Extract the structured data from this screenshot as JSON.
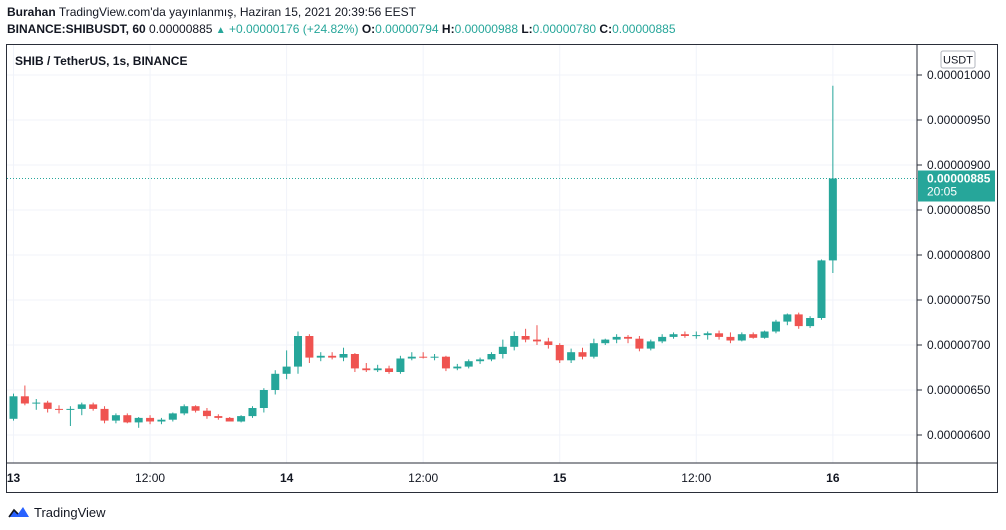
{
  "header": {
    "author": "Burahan",
    "published": "TradingView.com'da yayınlanmış, Haziran 15, 2021 20:39:56 EEST",
    "symbol": "BINANCE:SHIBUSDT, 60",
    "last": "0.00000885",
    "change": "+0.00000176 (+24.82%)",
    "o_label": "O:",
    "o": "0.00000794",
    "h_label": "H:",
    "h": "0.00000988",
    "l_label": "L:",
    "l": "0.00000780",
    "c_label": "C:",
    "c": "0.00000885"
  },
  "footer": {
    "brand": "TradingView"
  },
  "colors": {
    "up": "#26a69a",
    "down": "#ef5350",
    "grid": "#f0f3fa",
    "axis": "#2a2e39",
    "text": "#131722"
  },
  "chart_data": {
    "type": "candlestick",
    "title": "SHIB / TetherUS, 1s, BINANCE",
    "currency": "USDT",
    "ylim": [
      5.5e-06,
      1.04e-05
    ],
    "y_ticks": [
      "0.00001000",
      "0.00000950",
      "0.00000900",
      "0.00000850",
      "0.00000800",
      "0.00000750",
      "0.00000700",
      "0.00000650",
      "0.00000600"
    ],
    "x_ticks": [
      {
        "label": "13",
        "i": 0
      },
      {
        "label": "12:00",
        "i": 12
      },
      {
        "label": "14",
        "i": 24
      },
      {
        "label": "12:00",
        "i": 36
      },
      {
        "label": "15",
        "i": 48
      },
      {
        "label": "12:00",
        "i": 60
      },
      {
        "label": "16",
        "i": 72
      }
    ],
    "last_price": "0.00000885",
    "countdown": "20:05",
    "candles": [
      [
        6.18,
        6.46,
        6.16,
        6.43
      ],
      [
        6.43,
        6.55,
        6.33,
        6.35
      ],
      [
        6.35,
        6.4,
        6.28,
        6.36
      ],
      [
        6.36,
        6.38,
        6.25,
        6.29
      ],
      [
        6.29,
        6.33,
        6.24,
        6.28
      ],
      [
        6.28,
        6.32,
        6.1,
        6.29
      ],
      [
        6.29,
        6.36,
        6.22,
        6.34
      ],
      [
        6.34,
        6.36,
        6.27,
        6.29
      ],
      [
        6.29,
        6.32,
        6.13,
        6.16
      ],
      [
        6.16,
        6.24,
        6.13,
        6.22
      ],
      [
        6.22,
        6.24,
        6.13,
        6.14
      ],
      [
        6.14,
        6.2,
        6.08,
        6.19
      ],
      [
        6.19,
        6.22,
        6.12,
        6.15
      ],
      [
        6.15,
        6.19,
        6.12,
        6.17
      ],
      [
        6.17,
        6.25,
        6.15,
        6.24
      ],
      [
        6.24,
        6.34,
        6.22,
        6.32
      ],
      [
        6.32,
        6.33,
        6.25,
        6.27
      ],
      [
        6.27,
        6.3,
        6.18,
        6.21
      ],
      [
        6.21,
        6.23,
        6.17,
        6.19
      ],
      [
        6.19,
        6.2,
        6.15,
        6.15
      ],
      [
        6.15,
        6.22,
        6.14,
        6.21
      ],
      [
        6.21,
        6.32,
        6.19,
        6.3
      ],
      [
        6.3,
        6.52,
        6.25,
        6.5
      ],
      [
        6.5,
        6.72,
        6.45,
        6.68
      ],
      [
        6.68,
        6.94,
        6.62,
        6.76
      ],
      [
        6.76,
        7.15,
        6.68,
        7.1
      ],
      [
        7.1,
        7.12,
        6.8,
        6.86
      ],
      [
        6.86,
        6.92,
        6.82,
        6.88
      ],
      [
        6.88,
        6.92,
        6.84,
        6.86
      ],
      [
        6.86,
        6.97,
        6.82,
        6.9
      ],
      [
        6.9,
        6.91,
        6.7,
        6.74
      ],
      [
        6.74,
        6.8,
        6.7,
        6.72
      ],
      [
        6.72,
        6.78,
        6.7,
        6.74
      ],
      [
        6.74,
        6.77,
        6.68,
        6.7
      ],
      [
        6.7,
        6.88,
        6.68,
        6.85
      ],
      [
        6.85,
        6.92,
        6.83,
        6.87
      ],
      [
        6.87,
        6.92,
        6.85,
        6.86
      ],
      [
        6.86,
        6.9,
        6.83,
        6.87
      ],
      [
        6.87,
        6.88,
        6.71,
        6.74
      ],
      [
        6.74,
        6.79,
        6.72,
        6.76
      ],
      [
        6.76,
        6.84,
        6.74,
        6.82
      ],
      [
        6.82,
        6.86,
        6.79,
        6.84
      ],
      [
        6.84,
        6.92,
        6.82,
        6.9
      ],
      [
        6.9,
        7.06,
        6.85,
        6.98
      ],
      [
        6.98,
        7.15,
        6.94,
        7.1
      ],
      [
        7.1,
        7.18,
        7.03,
        7.06
      ],
      [
        7.06,
        7.22,
        7.0,
        7.04
      ],
      [
        7.04,
        7.08,
        6.96,
        7.0
      ],
      [
        7.0,
        7.02,
        6.8,
        6.83
      ],
      [
        6.83,
        6.96,
        6.8,
        6.92
      ],
      [
        6.92,
        6.97,
        6.84,
        6.87
      ],
      [
        6.87,
        7.07,
        6.85,
        7.02
      ],
      [
        7.02,
        7.07,
        7.0,
        7.06
      ],
      [
        7.06,
        7.12,
        7.02,
        7.09
      ],
      [
        7.09,
        7.11,
        7.02,
        7.07
      ],
      [
        7.07,
        7.1,
        6.93,
        6.96
      ],
      [
        6.96,
        7.06,
        6.94,
        7.04
      ],
      [
        7.04,
        7.12,
        7.02,
        7.09
      ],
      [
        7.09,
        7.14,
        7.07,
        7.12
      ],
      [
        7.12,
        7.15,
        7.08,
        7.1
      ],
      [
        7.1,
        7.15,
        7.07,
        7.11
      ],
      [
        7.11,
        7.15,
        7.06,
        7.13
      ],
      [
        7.13,
        7.16,
        7.06,
        7.09
      ],
      [
        7.09,
        7.14,
        7.02,
        7.05
      ],
      [
        7.05,
        7.14,
        7.04,
        7.12
      ],
      [
        7.12,
        7.14,
        7.07,
        7.08
      ],
      [
        7.08,
        7.16,
        7.07,
        7.15
      ],
      [
        7.15,
        7.28,
        7.13,
        7.26
      ],
      [
        7.26,
        7.35,
        7.22,
        7.34
      ],
      [
        7.34,
        7.36,
        7.18,
        7.21
      ],
      [
        7.21,
        7.32,
        7.19,
        7.3
      ],
      [
        7.3,
        7.95,
        7.28,
        7.94
      ],
      [
        7.94,
        9.88,
        7.8,
        8.85
      ]
    ]
  }
}
